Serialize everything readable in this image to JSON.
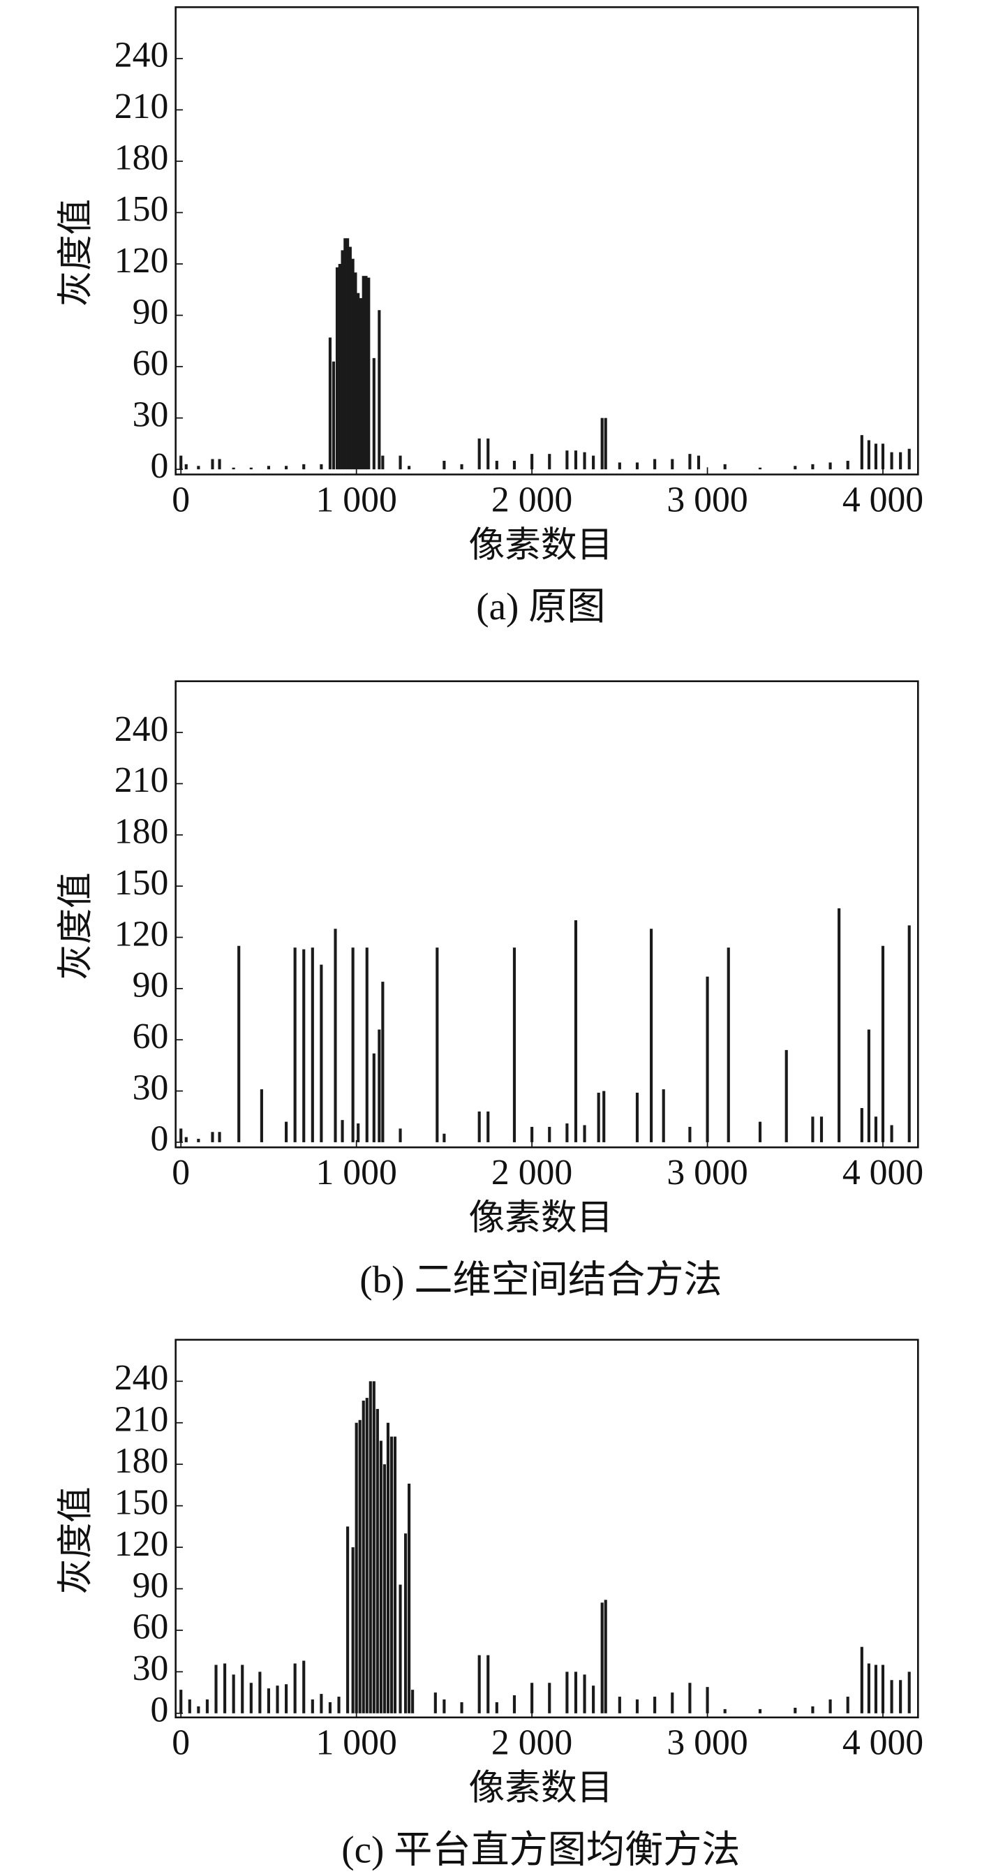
{
  "chart_data": [
    {
      "type": "bar",
      "caption": "(a) 原图",
      "x_label": "像素数目",
      "y_label": "灰度值",
      "color": "#1a1a1a",
      "x": [
        0,
        30,
        100,
        180,
        220,
        300,
        400,
        500,
        600,
        700,
        800,
        850,
        870,
        890,
        905,
        920,
        935,
        950,
        965,
        980,
        995,
        1010,
        1025,
        1040,
        1055,
        1070,
        1100,
        1130,
        1150,
        1250,
        1300,
        1500,
        1600,
        1700,
        1750,
        1800,
        1900,
        2000,
        2100,
        2200,
        2250,
        2300,
        2350,
        2400,
        2420,
        2500,
        2600,
        2700,
        2800,
        2900,
        2950,
        3100,
        3300,
        3500,
        3600,
        3700,
        3800,
        3880,
        3920,
        3960,
        4000,
        4050,
        4100,
        4150
      ],
      "values": [
        8,
        3,
        2,
        6,
        6,
        1,
        1,
        2,
        2,
        3,
        3,
        77,
        63,
        118,
        120,
        128,
        135,
        135,
        130,
        123,
        115,
        103,
        100,
        113,
        113,
        112,
        65,
        93,
        8,
        8,
        2,
        5,
        3,
        18,
        18,
        5,
        5,
        9,
        9,
        11,
        11,
        10,
        8,
        30,
        30,
        4,
        4,
        6,
        6,
        9,
        8,
        3,
        1,
        2,
        3,
        4,
        5,
        20,
        17,
        15,
        15,
        10,
        10,
        12
      ],
      "xlim": [
        -30,
        4200
      ],
      "xticks": [
        0,
        {
          "value": 1000,
          "label": "1 000"
        },
        {
          "value": 2000,
          "label": "2 000"
        },
        {
          "value": 3000,
          "label": "3 000"
        },
        {
          "value": 4000,
          "label": "4 000"
        }
      ],
      "ylim": [
        -3,
        270
      ],
      "yticks": [
        0,
        30,
        60,
        90,
        120,
        150,
        180,
        210,
        240
      ]
    },
    {
      "type": "bar",
      "caption": "(b) 二维空间结合方法",
      "x_label": "像素数目",
      "y_label": "灰度值",
      "color": "#1a1a1a",
      "x": [
        0,
        30,
        100,
        180,
        220,
        330,
        460,
        600,
        650,
        700,
        750,
        800,
        880,
        920,
        980,
        1010,
        1060,
        1100,
        1130,
        1150,
        1250,
        1460,
        1500,
        1700,
        1750,
        1900,
        2000,
        2100,
        2200,
        2250,
        2300,
        2380,
        2410,
        2600,
        2680,
        2750,
        2900,
        3000,
        3120,
        3300,
        3450,
        3600,
        3650,
        3750,
        3880,
        3920,
        3960,
        4000,
        4050,
        4150
      ],
      "values": [
        8,
        3,
        2,
        6,
        6,
        115,
        31,
        12,
        114,
        113,
        114,
        104,
        125,
        13,
        114,
        11,
        114,
        52,
        66,
        94,
        8,
        114,
        5,
        18,
        18,
        114,
        9,
        9,
        11,
        130,
        10,
        29,
        30,
        29,
        125,
        31,
        9,
        97,
        114,
        12,
        54,
        15,
        15,
        137,
        20,
        66,
        15,
        115,
        10,
        127
      ],
      "xlim": [
        -30,
        4200
      ],
      "xticks": [
        0,
        {
          "value": 1000,
          "label": "1 000"
        },
        {
          "value": 2000,
          "label": "2 000"
        },
        {
          "value": 3000,
          "label": "3 000"
        },
        {
          "value": 4000,
          "label": "4 000"
        }
      ],
      "ylim": [
        -3,
        270
      ],
      "yticks": [
        0,
        30,
        60,
        90,
        120,
        150,
        180,
        210,
        240
      ]
    },
    {
      "type": "bar",
      "caption": "(c) 平台直方图均衡方法",
      "x_label": "像素数目",
      "y_label": "灰度值",
      "color": "#1a1a1a",
      "x": [
        0,
        50,
        100,
        150,
        200,
        250,
        300,
        350,
        400,
        450,
        500,
        550,
        600,
        650,
        700,
        750,
        800,
        850,
        900,
        950,
        980,
        1000,
        1020,
        1040,
        1060,
        1080,
        1100,
        1120,
        1140,
        1160,
        1180,
        1200,
        1220,
        1250,
        1280,
        1300,
        1320,
        1450,
        1500,
        1600,
        1700,
        1750,
        1800,
        1900,
        2000,
        2100,
        2200,
        2250,
        2300,
        2350,
        2400,
        2420,
        2500,
        2600,
        2700,
        2800,
        2900,
        3000,
        3100,
        3300,
        3500,
        3600,
        3700,
        3800,
        3880,
        3920,
        3960,
        4000,
        4050,
        4100,
        4150
      ],
      "values": [
        17,
        10,
        5,
        10,
        35,
        36,
        28,
        35,
        22,
        30,
        18,
        20,
        21,
        36,
        38,
        10,
        14,
        8,
        12,
        135,
        120,
        210,
        212,
        226,
        228,
        240,
        240,
        220,
        197,
        180,
        210,
        200,
        200,
        93,
        130,
        166,
        17,
        15,
        10,
        8,
        42,
        42,
        8,
        13,
        22,
        22,
        30,
        30,
        28,
        20,
        80,
        82,
        12,
        10,
        12,
        15,
        22,
        19,
        3,
        3,
        4,
        5,
        10,
        12,
        48,
        36,
        35,
        35,
        24,
        24,
        30
      ],
      "xlim": [
        -30,
        4200
      ],
      "xticks": [
        0,
        {
          "value": 1000,
          "label": "1 000"
        },
        {
          "value": 2000,
          "label": "2 000"
        },
        {
          "value": 3000,
          "label": "3 000"
        },
        {
          "value": 4000,
          "label": "4 000"
        }
      ],
      "ylim": [
        -3,
        270
      ],
      "yticks": [
        0,
        30,
        60,
        90,
        120,
        150,
        180,
        210,
        240
      ]
    }
  ]
}
